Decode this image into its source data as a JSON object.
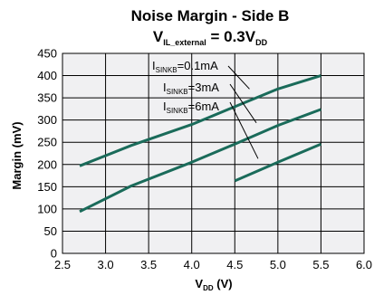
{
  "chart_data": {
    "type": "line",
    "title_line1": "Noise Margin - Side B",
    "title_line2": {
      "main": "V",
      "sub": "IL_external",
      "rest": " = 0.3V",
      "rest_sub": "DD"
    },
    "xlabel": {
      "main": "V",
      "sub": "DD",
      "rest": " (V)"
    },
    "ylabel": "Margin (mV)",
    "xlim": [
      2.5,
      6.0
    ],
    "ylim": [
      0,
      450
    ],
    "xticks": [
      "2.5",
      "3.0",
      "3.5",
      "4.0",
      "4.5",
      "5.0",
      "5.5",
      "6.0"
    ],
    "yticks": [
      "0",
      "50",
      "100",
      "150",
      "200",
      "250",
      "300",
      "350",
      "400",
      "450"
    ],
    "grid": true,
    "line_color": "#1a6b5a",
    "background_color": "#f0f0f2",
    "series": [
      {
        "name": "I_SINKB=0.1mA",
        "label_main": "I",
        "label_sub": "SINKB",
        "label_rest": "=0.1mA",
        "x": [
          2.7,
          3.3,
          4.0,
          4.5,
          5.0,
          5.5
        ],
        "y": [
          197,
          243,
          290,
          330,
          370,
          400
        ]
      },
      {
        "name": "I_SINKB=3mA",
        "label_main": "I",
        "label_sub": "SINKB",
        "label_rest": "=3mA",
        "x": [
          2.7,
          3.3,
          4.0,
          4.5,
          5.0,
          5.5
        ],
        "y": [
          94,
          152,
          205,
          246,
          288,
          324
        ]
      },
      {
        "name": "I_SINKB=6mA",
        "label_main": "I",
        "label_sub": "SINKB",
        "label_rest": "=6mA",
        "x": [
          4.5,
          5.0,
          5.5
        ],
        "y": [
          163,
          205,
          246
        ]
      }
    ]
  }
}
